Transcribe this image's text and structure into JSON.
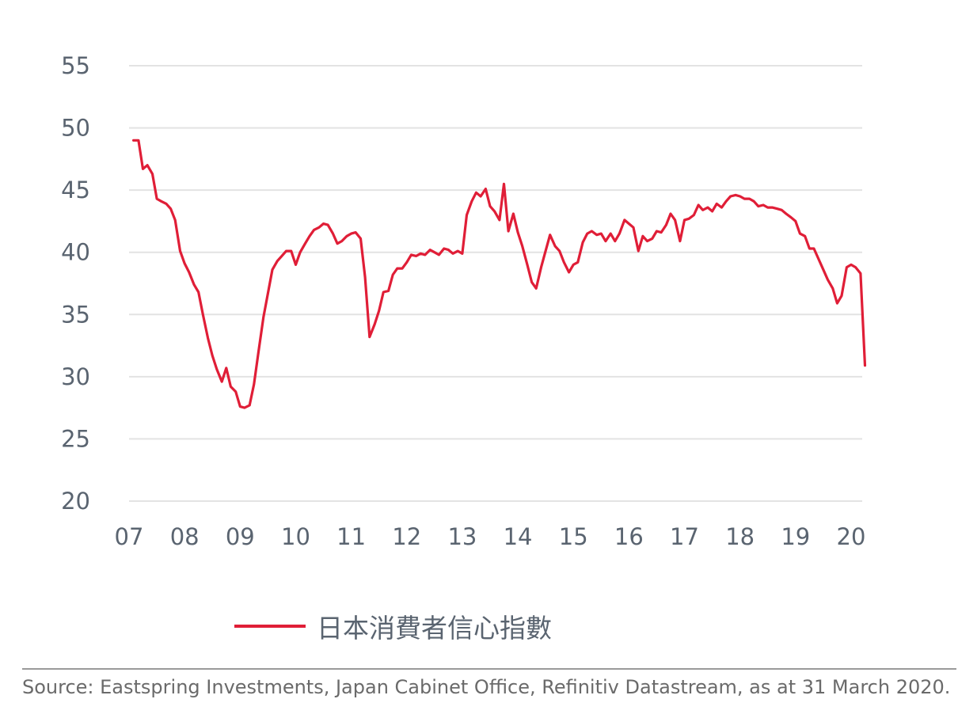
{
  "colors": {
    "series": "#e01e37",
    "text": "#5a6470",
    "grid": "#e3e3e3"
  },
  "chart_data": {
    "type": "line",
    "title": "",
    "xlabel": "",
    "ylabel": "",
    "ylim": [
      20,
      55
    ],
    "xlim": [
      2007,
      2020.2
    ],
    "y_ticks": [
      55,
      50,
      45,
      40,
      35,
      30,
      25,
      20
    ],
    "x_tick_labels": [
      "07",
      "08",
      "09",
      "10",
      "11",
      "12",
      "13",
      "14",
      "15",
      "16",
      "17",
      "18",
      "19",
      "20"
    ],
    "x_tick_values": [
      2007,
      2008,
      2009,
      2010,
      2011,
      2012,
      2013,
      2014,
      2015,
      2016,
      2017,
      2018,
      2019,
      2020
    ],
    "grid": true,
    "legend_position": "bottom",
    "series": [
      {
        "name": "日本消費者信心指數",
        "points": [
          [
            2007.08,
            49.0
          ],
          [
            2007.17,
            49.0
          ],
          [
            2007.25,
            46.7
          ],
          [
            2007.33,
            47.0
          ],
          [
            2007.42,
            46.3
          ],
          [
            2007.5,
            44.3
          ],
          [
            2007.58,
            44.1
          ],
          [
            2007.67,
            43.9
          ],
          [
            2007.75,
            43.5
          ],
          [
            2007.83,
            42.6
          ],
          [
            2007.92,
            40.1
          ],
          [
            2008.0,
            39.1
          ],
          [
            2008.08,
            38.4
          ],
          [
            2008.17,
            37.4
          ],
          [
            2008.25,
            36.8
          ],
          [
            2008.33,
            35.0
          ],
          [
            2008.42,
            33.1
          ],
          [
            2008.5,
            31.7
          ],
          [
            2008.58,
            30.6
          ],
          [
            2008.67,
            29.6
          ],
          [
            2008.75,
            30.7
          ],
          [
            2008.83,
            29.2
          ],
          [
            2008.92,
            28.8
          ],
          [
            2009.0,
            27.6
          ],
          [
            2009.08,
            27.5
          ],
          [
            2009.17,
            27.7
          ],
          [
            2009.25,
            29.4
          ],
          [
            2009.33,
            32.0
          ],
          [
            2009.42,
            34.8
          ],
          [
            2009.5,
            36.7
          ],
          [
            2009.58,
            38.6
          ],
          [
            2009.67,
            39.3
          ],
          [
            2009.75,
            39.7
          ],
          [
            2009.83,
            40.1
          ],
          [
            2009.92,
            40.1
          ],
          [
            2010.0,
            39.0
          ],
          [
            2010.08,
            40.0
          ],
          [
            2010.17,
            40.7
          ],
          [
            2010.25,
            41.3
          ],
          [
            2010.33,
            41.8
          ],
          [
            2010.42,
            42.0
          ],
          [
            2010.5,
            42.3
          ],
          [
            2010.58,
            42.2
          ],
          [
            2010.67,
            41.5
          ],
          [
            2010.75,
            40.7
          ],
          [
            2010.83,
            40.9
          ],
          [
            2010.92,
            41.3
          ],
          [
            2011.0,
            41.5
          ],
          [
            2011.08,
            41.6
          ],
          [
            2011.17,
            41.1
          ],
          [
            2011.25,
            38.0
          ],
          [
            2011.33,
            33.2
          ],
          [
            2011.42,
            34.2
          ],
          [
            2011.5,
            35.3
          ],
          [
            2011.58,
            36.8
          ],
          [
            2011.67,
            36.9
          ],
          [
            2011.75,
            38.2
          ],
          [
            2011.83,
            38.7
          ],
          [
            2011.92,
            38.7
          ],
          [
            2012.0,
            39.2
          ],
          [
            2012.08,
            39.8
          ],
          [
            2012.17,
            39.7
          ],
          [
            2012.25,
            39.9
          ],
          [
            2012.33,
            39.8
          ],
          [
            2012.42,
            40.2
          ],
          [
            2012.5,
            40.0
          ],
          [
            2012.58,
            39.8
          ],
          [
            2012.67,
            40.3
          ],
          [
            2012.75,
            40.2
          ],
          [
            2012.83,
            39.9
          ],
          [
            2012.92,
            40.1
          ],
          [
            2013.0,
            39.9
          ],
          [
            2013.08,
            43.0
          ],
          [
            2013.17,
            44.1
          ],
          [
            2013.25,
            44.8
          ],
          [
            2013.33,
            44.5
          ],
          [
            2013.42,
            45.1
          ],
          [
            2013.5,
            43.7
          ],
          [
            2013.58,
            43.3
          ],
          [
            2013.67,
            42.6
          ],
          [
            2013.75,
            45.5
          ],
          [
            2013.83,
            41.7
          ],
          [
            2013.92,
            43.1
          ],
          [
            2014.0,
            41.6
          ],
          [
            2014.08,
            40.5
          ],
          [
            2014.17,
            39.0
          ],
          [
            2014.25,
            37.6
          ],
          [
            2014.33,
            37.1
          ],
          [
            2014.42,
            38.8
          ],
          [
            2014.5,
            40.1
          ],
          [
            2014.58,
            41.4
          ],
          [
            2014.67,
            40.5
          ],
          [
            2014.75,
            40.1
          ],
          [
            2014.83,
            39.2
          ],
          [
            2014.92,
            38.4
          ],
          [
            2015.0,
            39.0
          ],
          [
            2015.08,
            39.2
          ],
          [
            2015.17,
            40.8
          ],
          [
            2015.25,
            41.5
          ],
          [
            2015.33,
            41.7
          ],
          [
            2015.42,
            41.4
          ],
          [
            2015.5,
            41.5
          ],
          [
            2015.58,
            40.9
          ],
          [
            2015.67,
            41.5
          ],
          [
            2015.75,
            40.9
          ],
          [
            2015.83,
            41.5
          ],
          [
            2015.92,
            42.6
          ],
          [
            2016.0,
            42.3
          ],
          [
            2016.08,
            42.0
          ],
          [
            2016.17,
            40.1
          ],
          [
            2016.25,
            41.3
          ],
          [
            2016.33,
            40.9
          ],
          [
            2016.42,
            41.1
          ],
          [
            2016.5,
            41.7
          ],
          [
            2016.58,
            41.6
          ],
          [
            2016.67,
            42.2
          ],
          [
            2016.75,
            43.1
          ],
          [
            2016.83,
            42.6
          ],
          [
            2016.92,
            40.9
          ],
          [
            2017.0,
            42.6
          ],
          [
            2017.08,
            42.7
          ],
          [
            2017.17,
            43.0
          ],
          [
            2017.25,
            43.8
          ],
          [
            2017.33,
            43.4
          ],
          [
            2017.42,
            43.6
          ],
          [
            2017.5,
            43.3
          ],
          [
            2017.58,
            43.9
          ],
          [
            2017.67,
            43.6
          ],
          [
            2017.75,
            44.1
          ],
          [
            2017.83,
            44.5
          ],
          [
            2017.92,
            44.6
          ],
          [
            2018.0,
            44.5
          ],
          [
            2018.08,
            44.3
          ],
          [
            2018.17,
            44.3
          ],
          [
            2018.25,
            44.1
          ],
          [
            2018.33,
            43.7
          ],
          [
            2018.42,
            43.8
          ],
          [
            2018.5,
            43.6
          ],
          [
            2018.58,
            43.6
          ],
          [
            2018.67,
            43.5
          ],
          [
            2018.75,
            43.4
          ],
          [
            2018.83,
            43.1
          ],
          [
            2018.92,
            42.8
          ],
          [
            2019.0,
            42.5
          ],
          [
            2019.08,
            41.5
          ],
          [
            2019.17,
            41.3
          ],
          [
            2019.25,
            40.3
          ],
          [
            2019.33,
            40.3
          ],
          [
            2019.42,
            39.4
          ],
          [
            2019.5,
            38.6
          ],
          [
            2019.58,
            37.8
          ],
          [
            2019.67,
            37.1
          ],
          [
            2019.75,
            35.9
          ],
          [
            2019.83,
            36.5
          ],
          [
            2019.92,
            38.8
          ],
          [
            2020.0,
            39.0
          ],
          [
            2020.08,
            38.8
          ],
          [
            2020.17,
            38.3
          ],
          [
            2020.25,
            30.9
          ]
        ]
      }
    ]
  },
  "legend": {
    "label": "日本消費者信心指數"
  },
  "footer": {
    "source": "Source: Eastspring Investments, Japan Cabinet Office, Refinitiv Datastream, as at 31 March 2020."
  }
}
